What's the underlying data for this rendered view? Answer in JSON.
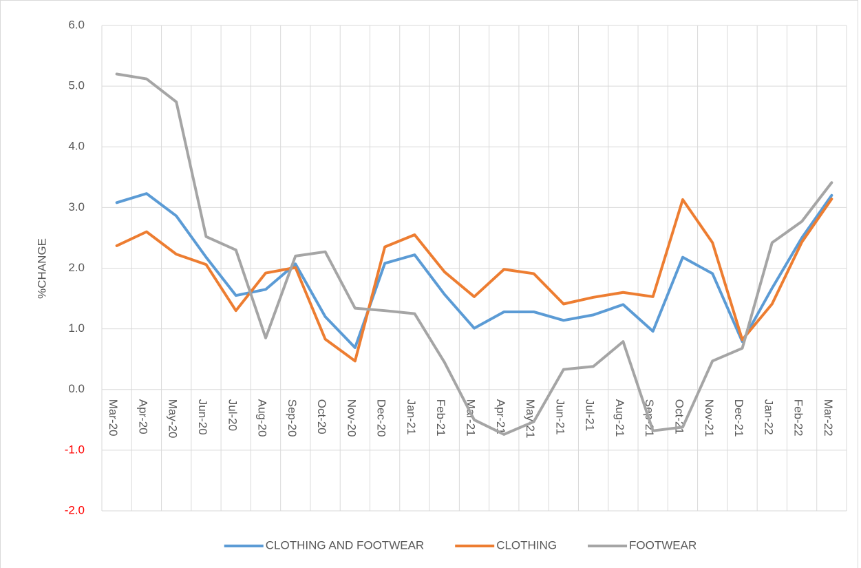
{
  "chart_data": {
    "type": "line",
    "y_label": "%CHANGE",
    "categories": [
      "Mar-20",
      "Apr-20",
      "May-20",
      "Jun-20",
      "Jul-20",
      "Aug-20",
      "Sep-20",
      "Oct-20",
      "Nov-20",
      "Dec-20",
      "Jan-21",
      "Feb-21",
      "Mar-21",
      "Apr-21",
      "May-21",
      "Jun-21",
      "Jul-21",
      "Aug-21",
      "Sep-21",
      "Oct-21",
      "Nov-21",
      "Dec-21",
      "Jan-22",
      "Feb-22",
      "Mar-22"
    ],
    "series": [
      {
        "name": "CLOTHING AND FOOTWEAR",
        "color": "#5b9bd5",
        "values": [
          3.08,
          3.23,
          2.86,
          2.18,
          1.55,
          1.65,
          2.07,
          1.2,
          0.69,
          2.08,
          2.22,
          1.57,
          1.01,
          1.28,
          1.28,
          1.14,
          1.23,
          1.4,
          0.96,
          2.18,
          1.91,
          0.79,
          1.67,
          2.5,
          3.2
        ]
      },
      {
        "name": "CLOTHING",
        "color": "#ed7d31",
        "values": [
          2.37,
          2.6,
          2.23,
          2.06,
          1.3,
          1.92,
          2.01,
          0.83,
          0.47,
          2.35,
          2.55,
          1.94,
          1.53,
          1.98,
          1.91,
          1.41,
          1.52,
          1.6,
          1.53,
          3.13,
          2.42,
          0.82,
          1.41,
          2.43,
          3.14
        ]
      },
      {
        "name": "FOOTWEAR",
        "color": "#a5a5a5",
        "values": [
          5.2,
          5.12,
          4.74,
          2.52,
          2.3,
          0.85,
          2.2,
          2.27,
          1.34,
          1.3,
          1.25,
          0.45,
          -0.5,
          -0.74,
          -0.53,
          0.33,
          0.38,
          0.79,
          -0.68,
          -0.62,
          0.47,
          0.68,
          2.42,
          2.77,
          3.41
        ]
      }
    ],
    "ylim": [
      -2,
      6
    ],
    "yticks": [
      {
        "value": -2,
        "label": "-2.0"
      },
      {
        "value": -1,
        "label": "-1.0"
      },
      {
        "value": 0,
        "label": "0.0"
      },
      {
        "value": 1,
        "label": "1.0"
      },
      {
        "value": 2,
        "label": "2.0"
      },
      {
        "value": 3,
        "label": "3.0"
      },
      {
        "value": 4,
        "label": "4.0"
      },
      {
        "value": 5,
        "label": "5.0"
      },
      {
        "value": 6,
        "label": "6.0"
      }
    ],
    "negative_tick_color": "#ff0000",
    "grid": true,
    "legend": "bottom"
  }
}
